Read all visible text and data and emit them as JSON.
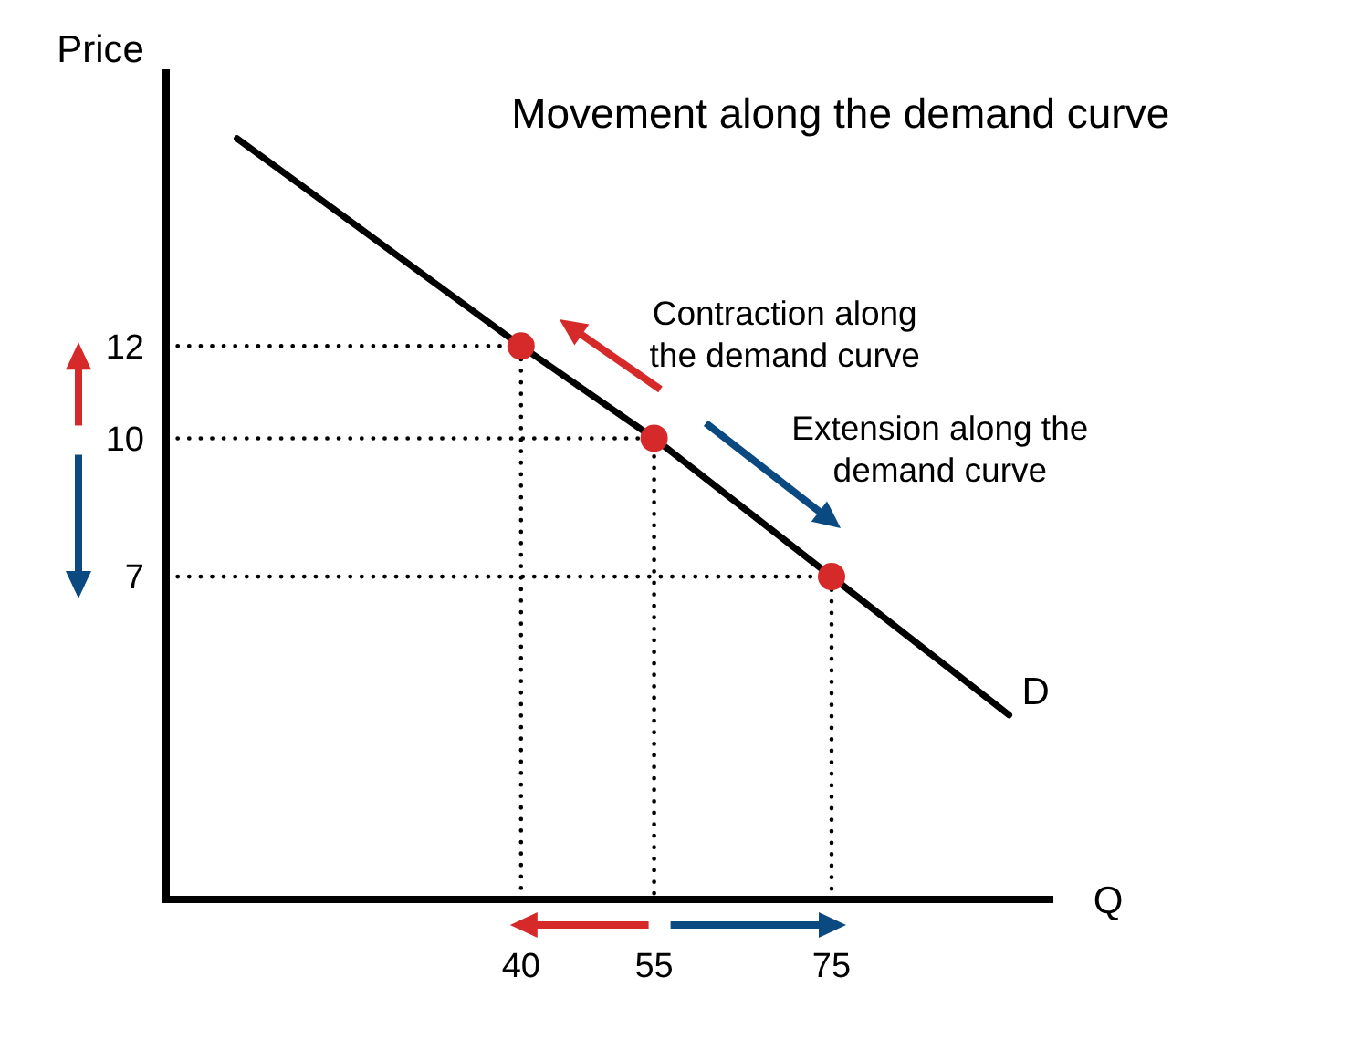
{
  "chart_data": {
    "type": "line",
    "title": "Movement along the demand curve",
    "xlabel": "Q",
    "ylabel": "Price",
    "xlim": [
      0,
      100
    ],
    "ylim": [
      0,
      18
    ],
    "xticks": [
      40,
      55,
      75
    ],
    "yticks": [
      7,
      10,
      12
    ],
    "series": [
      {
        "name": "D",
        "color": "#000000",
        "line_style": "solid",
        "x": [
          8,
          40,
          55,
          75,
          95
        ],
        "values": [
          16.5,
          12,
          10,
          7,
          4
        ]
      },
      {
        "color": "#000000",
        "line_style": "dotted",
        "x": [
          0,
          40,
          40
        ],
        "values": [
          12,
          12,
          0
        ]
      },
      {
        "color": "#000000",
        "line_style": "dotted",
        "x": [
          0,
          55,
          55
        ],
        "values": [
          10,
          10,
          0
        ]
      },
      {
        "color": "#000000",
        "line_style": "dotted",
        "x": [
          0,
          75,
          75
        ],
        "values": [
          7,
          7,
          0
        ]
      },
      {
        "type": "scatter",
        "color": "#d62a2a",
        "marker": "circle",
        "x": [
          40,
          55,
          75
        ],
        "values": [
          12,
          10,
          7
        ]
      }
    ],
    "annotations": [
      {
        "text": "Contraction along\nthe demand curve",
        "x": 47.5,
        "y": 11
      },
      {
        "text": "Extension along the\ndemand curve",
        "x": 65,
        "y": 8.5
      }
    ]
  }
}
